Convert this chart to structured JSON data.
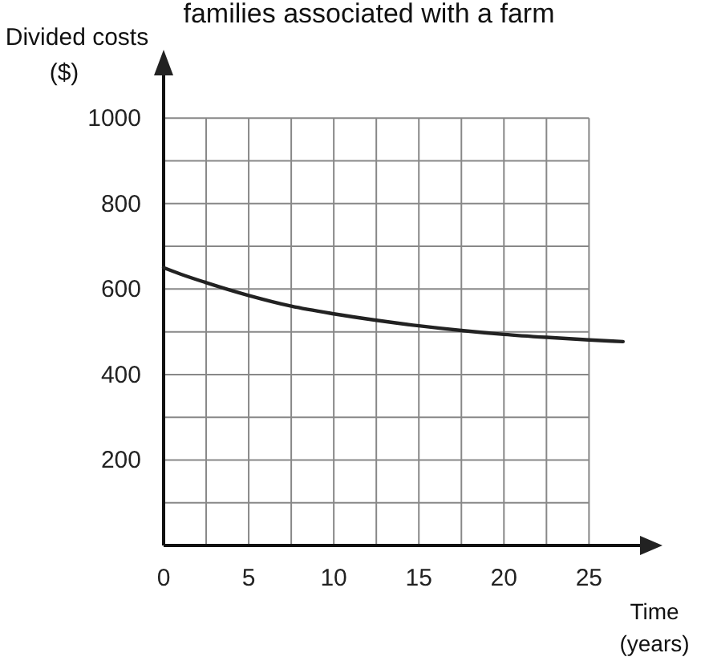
{
  "chart_data": {
    "type": "line",
    "title": "families associated with a farm",
    "xlabel": "Time\n(years)",
    "ylabel": "Divided costs\n($)",
    "x": [
      0,
      1,
      2.5,
      5,
      7.5,
      10,
      12.5,
      15,
      17.5,
      20,
      22.5,
      25,
      27
    ],
    "series": [
      {
        "color": "#222222",
        "values": [
          650,
          635,
          615,
          585,
          560,
          542,
          527,
          514,
          503,
          494,
          487,
          481,
          477
        ]
      }
    ],
    "xlim": [
      0,
      28
    ],
    "ylim": [
      0,
      1100
    ],
    "xticks": [
      0,
      {
        "value": 2.5,
        "label": null
      },
      5,
      {
        "value": 7.5,
        "label": null
      },
      10,
      {
        "value": 12.5,
        "label": null
      },
      15,
      {
        "value": 17.5,
        "label": null
      },
      20,
      {
        "value": 22.5,
        "label": null
      },
      25
    ],
    "yticks": [
      {
        "value": 0,
        "label": null
      },
      {
        "value": 100,
        "label": null
      },
      200,
      {
        "value": 300,
        "label": null
      },
      400,
      {
        "value": 500,
        "label": null
      },
      600,
      {
        "value": 700,
        "label": null
      },
      800,
      {
        "value": 900,
        "label": null
      },
      1000
    ],
    "grid": true,
    "marker": "none",
    "line_style": "solid"
  }
}
